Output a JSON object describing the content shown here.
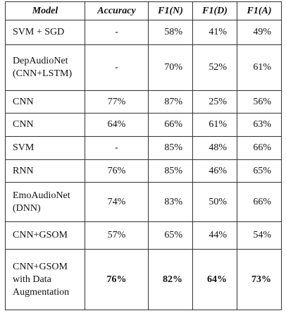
{
  "table": {
    "headers": [
      "Model",
      "Accuracy",
      "F1(N)",
      "F1(D)",
      "F1(A)"
    ],
    "rows": [
      {
        "model": "SVM + SGD",
        "accuracy": "-",
        "f1n": "58%",
        "f1d": "41%",
        "f1a": "49%"
      },
      {
        "model": "DepAudioNet (CNN+LSTM)",
        "accuracy": "-",
        "f1n": "70%",
        "f1d": "52%",
        "f1a": "61%"
      },
      {
        "model": "CNN",
        "accuracy": "77%",
        "f1n": "87%",
        "f1d": "25%",
        "f1a": "56%"
      },
      {
        "model": "CNN",
        "accuracy": "64%",
        "f1n": "66%",
        "f1d": "61%",
        "f1a": "63%"
      },
      {
        "model": "SVM",
        "accuracy": "-",
        "f1n": "85%",
        "f1d": "48%",
        "f1a": "66%"
      },
      {
        "model": "RNN",
        "accuracy": "76%",
        "f1n": "85%",
        "f1d": "46%",
        "f1a": "65%"
      },
      {
        "model": "EmoAudioNet (DNN)",
        "accuracy": "74%",
        "f1n": "83%",
        "f1d": "50%",
        "f1a": "66%"
      },
      {
        "model": "CNN+GSOM",
        "accuracy": "57%",
        "f1n": "65%",
        "f1d": "44%",
        "f1a": "54%"
      },
      {
        "model": "CNN+GSOM with Data Augmentation",
        "accuracy": "76%",
        "f1n": "82%",
        "f1d": "64%",
        "f1a": "73%"
      }
    ]
  }
}
